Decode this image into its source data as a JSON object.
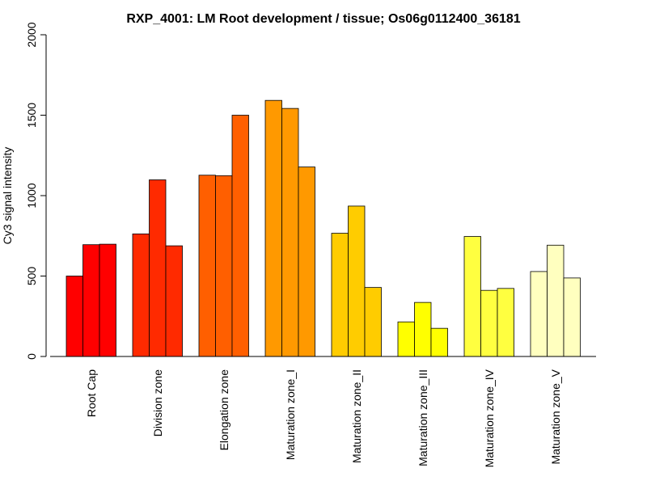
{
  "chart_data": {
    "type": "bar",
    "title": "RXP_4001: LM Root development / tissue; Os06g0112400_36181",
    "xlabel": "",
    "ylabel": "Cy3 signal intensity",
    "ylim": [
      0,
      2000
    ],
    "yticks": [
      0,
      500,
      1000,
      1500,
      2000
    ],
    "categories": [
      "Root Cap",
      "Division zone",
      "Elongation zone",
      "Maturation zone_I",
      "Maturation zone_II",
      "Maturation zone_III",
      "Maturation zone_IV",
      "Maturation zone_V"
    ],
    "colors": [
      "#ff0000",
      "#ff2a00",
      "#ff5f00",
      "#ff9900",
      "#ffcc00",
      "#ffff00",
      "#ffff40",
      "#ffffbf"
    ],
    "replicates": [
      [
        500,
        695,
        698
      ],
      [
        762,
        1098,
        688
      ],
      [
        1127,
        1124,
        1500
      ],
      [
        1592,
        1542,
        1178
      ],
      [
        766,
        935,
        429
      ],
      [
        215,
        336,
        175
      ],
      [
        746,
        411,
        423
      ],
      [
        528,
        692,
        488
      ]
    ]
  }
}
